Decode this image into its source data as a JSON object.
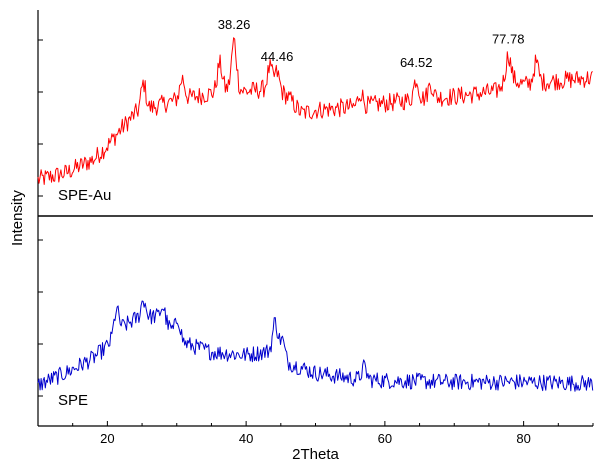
{
  "chart_data": {
    "type": "line",
    "xlabel": "2Theta",
    "ylabel": "Intensity",
    "xlim": [
      10,
      90
    ],
    "x_ticks": [
      20,
      40,
      60,
      80
    ],
    "x_tick_labels": [
      "20",
      "40",
      "60",
      "80"
    ],
    "yticks_shown": false,
    "grid": false,
    "panels": [
      {
        "series_label": "SPE-Au",
        "color": "#ff0000",
        "position": "top",
        "profile": [
          [
            10,
            0.06
          ],
          [
            14,
            0.1
          ],
          [
            18,
            0.18
          ],
          [
            20,
            0.26
          ],
          [
            22,
            0.36
          ],
          [
            24,
            0.45
          ],
          [
            26,
            0.48
          ],
          [
            30,
            0.53
          ],
          [
            34,
            0.56
          ],
          [
            38,
            0.6
          ],
          [
            40,
            0.58
          ],
          [
            44,
            0.6
          ],
          [
            46,
            0.55
          ],
          [
            48,
            0.45
          ],
          [
            50,
            0.47
          ],
          [
            56,
            0.49
          ],
          [
            60,
            0.51
          ],
          [
            66,
            0.54
          ],
          [
            70,
            0.55
          ],
          [
            76,
            0.58
          ],
          [
            78,
            0.66
          ],
          [
            80,
            0.62
          ],
          [
            84,
            0.64
          ],
          [
            90,
            0.66
          ]
        ],
        "peaks": [
          {
            "x": 25.2,
            "h": 0.16
          },
          {
            "x": 30.8,
            "h": 0.12
          },
          {
            "x": 36.2,
            "h": 0.16
          },
          {
            "x": 38.26,
            "h": 0.28
          },
          {
            "x": 43.4,
            "h": 0.12
          },
          {
            "x": 44.46,
            "h": 0.1
          },
          {
            "x": 56.5,
            "h": 0.08
          },
          {
            "x": 64.52,
            "h": 0.12
          },
          {
            "x": 66.6,
            "h": 0.08
          },
          {
            "x": 77.78,
            "h": 0.14
          },
          {
            "x": 81.8,
            "h": 0.12
          }
        ],
        "peak_labels": [
          {
            "x": 38.26,
            "text": "38.26"
          },
          {
            "x": 44.46,
            "text": "44.46"
          },
          {
            "x": 64.52,
            "text": "64.52"
          },
          {
            "x": 77.78,
            "text": "77.78"
          }
        ]
      },
      {
        "series_label": "SPE",
        "color": "#0000cc",
        "position": "bottom",
        "profile": [
          [
            10,
            0.1
          ],
          [
            14,
            0.18
          ],
          [
            18,
            0.28
          ],
          [
            20,
            0.36
          ],
          [
            22,
            0.48
          ],
          [
            24,
            0.54
          ],
          [
            27,
            0.56
          ],
          [
            29,
            0.48
          ],
          [
            31,
            0.38
          ],
          [
            35,
            0.32
          ],
          [
            40,
            0.3
          ],
          [
            44,
            0.33
          ],
          [
            46,
            0.25
          ],
          [
            50,
            0.18
          ],
          [
            56,
            0.14
          ],
          [
            60,
            0.13
          ],
          [
            70,
            0.12
          ],
          [
            80,
            0.12
          ],
          [
            90,
            0.11
          ]
        ],
        "peaks": [
          {
            "x": 21.3,
            "h": 0.16
          },
          {
            "x": 25.2,
            "h": 0.12
          },
          {
            "x": 28.0,
            "h": 0.1
          },
          {
            "x": 30.2,
            "h": 0.12
          },
          {
            "x": 44.2,
            "h": 0.2
          },
          {
            "x": 45.2,
            "h": 0.12
          },
          {
            "x": 57.0,
            "h": 0.08
          }
        ],
        "peak_labels": []
      }
    ]
  }
}
